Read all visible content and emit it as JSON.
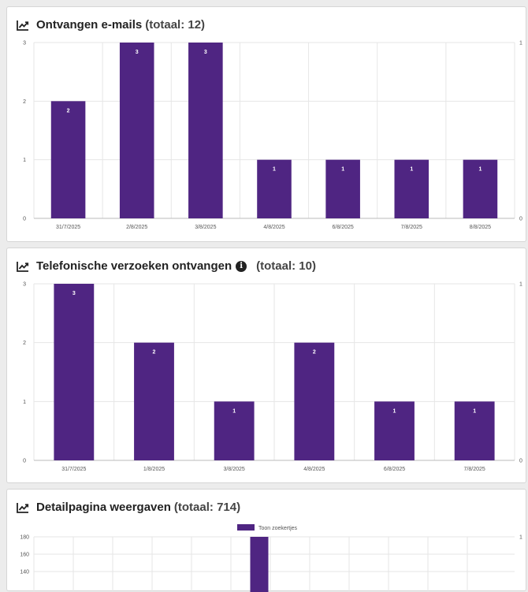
{
  "colors": {
    "bar": "#4f2582",
    "grid": "#e6e6e6",
    "axis": "#bbbbbb"
  },
  "icons": {
    "title_icon": "chart-line-icon",
    "info_icon": "info-circle-icon"
  },
  "cards": [
    {
      "title": "Ontvangen e-mails",
      "total": "(totaal: 12)"
    },
    {
      "title": "Telefonische verzoeken ontvangen",
      "total": "(totaal: 10)",
      "info": "i"
    },
    {
      "title": "Detailpagina weergaven",
      "total": "(totaal: 714)"
    }
  ],
  "chart_data": [
    {
      "type": "bar",
      "title": "Ontvangen e-mails",
      "categories": [
        "31/7/2025",
        "2/8/2025",
        "3/8/2025",
        "4/8/2025",
        "6/8/2025",
        "7/8/2025",
        "8/8/2025"
      ],
      "values": [
        2,
        3,
        3,
        1,
        1,
        1,
        1
      ],
      "ylim": [
        0,
        3
      ],
      "yticks": [
        0,
        1,
        2,
        3
      ],
      "y2ticks": [
        0,
        1
      ],
      "grid": true
    },
    {
      "type": "bar",
      "title": "Telefonische verzoeken ontvangen",
      "categories": [
        "31/7/2025",
        "1/8/2025",
        "3/8/2025",
        "4/8/2025",
        "6/8/2025",
        "7/8/2025"
      ],
      "values": [
        3,
        2,
        1,
        2,
        1,
        1
      ],
      "ylim": [
        0,
        3
      ],
      "yticks": [
        0,
        1,
        2,
        3
      ],
      "y2ticks": [
        0,
        1
      ],
      "grid": true
    },
    {
      "type": "bar",
      "title": "Detailpagina weergaven",
      "legend": [
        "Toon zoekertjes"
      ],
      "legend_position": "top-center",
      "ylim": [
        0,
        180
      ],
      "yticks": [
        140,
        160,
        180
      ],
      "y2ticks": [
        1
      ],
      "grid_columns": 11,
      "visible_bar_index": 5,
      "visible_bar_value": 180
    }
  ]
}
